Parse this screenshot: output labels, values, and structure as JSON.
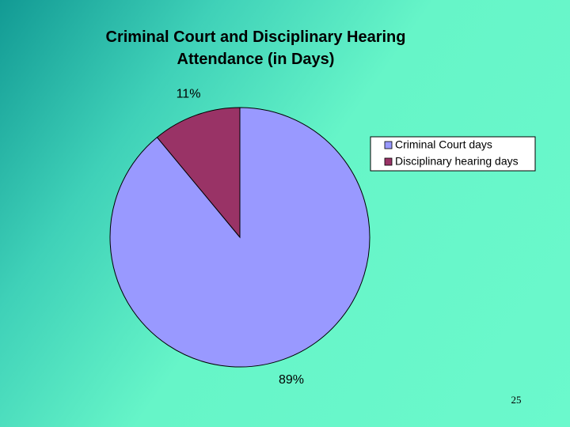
{
  "chart_data": {
    "type": "pie",
    "title": "Criminal Court and Disciplinary Hearing Attendance (in Days)",
    "categories": [
      "Criminal Court days",
      "Disciplinary hearing days"
    ],
    "values": [
      89,
      11
    ],
    "value_labels": [
      "89%",
      "11%"
    ],
    "colors": [
      "#9999ff",
      "#993366"
    ],
    "legend": "right"
  },
  "page_number": "25"
}
